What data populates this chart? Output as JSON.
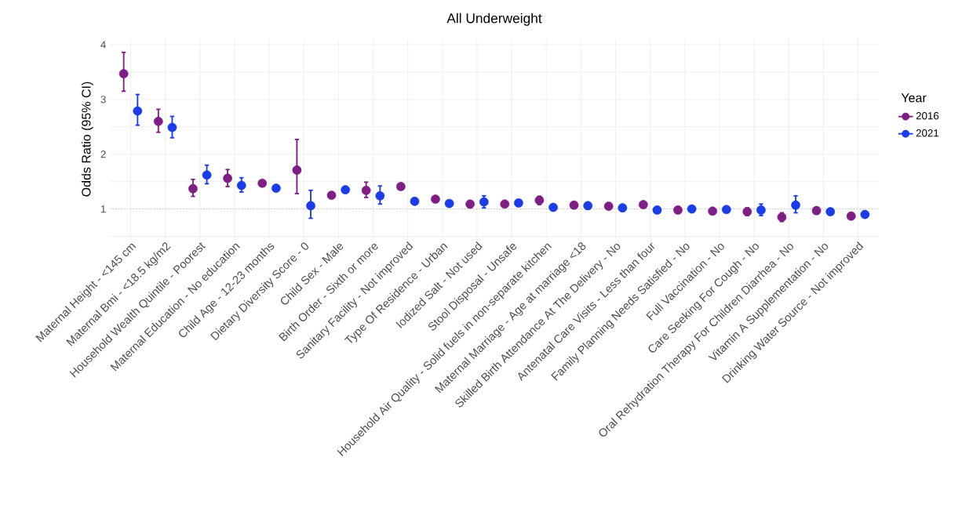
{
  "chart_data": {
    "type": "scatter",
    "title": "All Underweight",
    "ylabel": "Odds Ratio (95% CI)",
    "legend_title": "Year",
    "categories": [
      "Maternal Height  -  <145 cm",
      "Maternal Bmi  -  <18.5 kg/m2",
      "Household Wealth Quintile  -  Poorest",
      "Maternal Education  -  No education",
      "Child Age  -  12-23 months",
      "Dietary Diversity Score  -  0",
      "Child Sex  -  Male",
      "Birth Order  -  Sixth or more",
      "Sanitary Facility  -  Not improved",
      "Type Of Residence  -  Urban",
      "Iodized Salt  -  Not used",
      "Stool Disposal  -  Unsafe",
      "Household Air Quality  -  Solid fuels in non-separate kitchen",
      "Maternal Marriage  -  Age at marriage <18",
      "Skilled Birth Attendance At The Delivery  -  No",
      "Antenatal Care Visits  -  Less than four",
      "Family Planning Needs Satisfied  -  No",
      "Full Vaccination  -  No",
      "Care Seeking For Cough  -  No",
      "Oral Rehydration Therapy For Children Diarrhea  -  No",
      "Vitamin A Supplementation  -  No",
      "Drinking Water Source  -  Not improved"
    ],
    "series": [
      {
        "name": "2016",
        "color": "#7f1f86",
        "values": [
          3.47,
          2.6,
          1.37,
          1.56,
          1.47,
          1.71,
          1.25,
          1.34,
          1.41,
          1.18,
          1.09,
          1.09,
          1.16,
          1.07,
          1.05,
          1.08,
          0.98,
          0.96,
          0.95,
          0.85,
          0.97,
          0.87
        ],
        "errors": [
          [
            3.15,
            3.86
          ],
          [
            2.4,
            2.82
          ],
          [
            1.23,
            1.54
          ],
          [
            1.41,
            1.72
          ],
          null,
          [
            1.28,
            2.27
          ],
          null,
          [
            1.21,
            1.49
          ],
          null,
          null,
          [
            1.02,
            1.14
          ],
          null,
          [
            1.08,
            1.23
          ],
          null,
          null,
          null,
          null,
          null,
          [
            0.88,
            1.02
          ],
          [
            0.77,
            0.93
          ],
          null,
          null
        ]
      },
      {
        "name": "2021",
        "color": "#1b3de8",
        "values": [
          2.79,
          2.49,
          1.62,
          1.43,
          1.38,
          1.06,
          1.35,
          1.24,
          1.14,
          1.1,
          1.13,
          1.11,
          1.03,
          1.06,
          1.02,
          0.98,
          1.0,
          0.99,
          0.98,
          1.07,
          0.95,
          0.9
        ],
        "errors": [
          [
            2.53,
            3.09
          ],
          [
            2.3,
            2.69
          ],
          [
            1.46,
            1.8
          ],
          [
            1.31,
            1.57
          ],
          null,
          [
            0.83,
            1.34
          ],
          null,
          [
            1.09,
            1.42
          ],
          null,
          null,
          [
            1.02,
            1.24
          ],
          null,
          null,
          null,
          null,
          null,
          null,
          null,
          [
            0.88,
            1.09
          ],
          [
            0.93,
            1.24
          ],
          null,
          null
        ]
      }
    ],
    "ylim": [
      0.45,
      4.1
    ],
    "yticks": [
      {
        "value": 0.5,
        "label": null
      },
      1,
      {
        "value": 1.5,
        "label": null
      },
      2,
      {
        "value": 2.5,
        "label": null
      },
      3,
      {
        "value": 3.5,
        "label": null
      },
      4
    ],
    "ref_lines": [
      {
        "axis": "y",
        "value": 1,
        "color": "#bdbdbd",
        "line_style": "dotted"
      }
    ],
    "grid": true,
    "legend": "right",
    "marker": "circle"
  }
}
